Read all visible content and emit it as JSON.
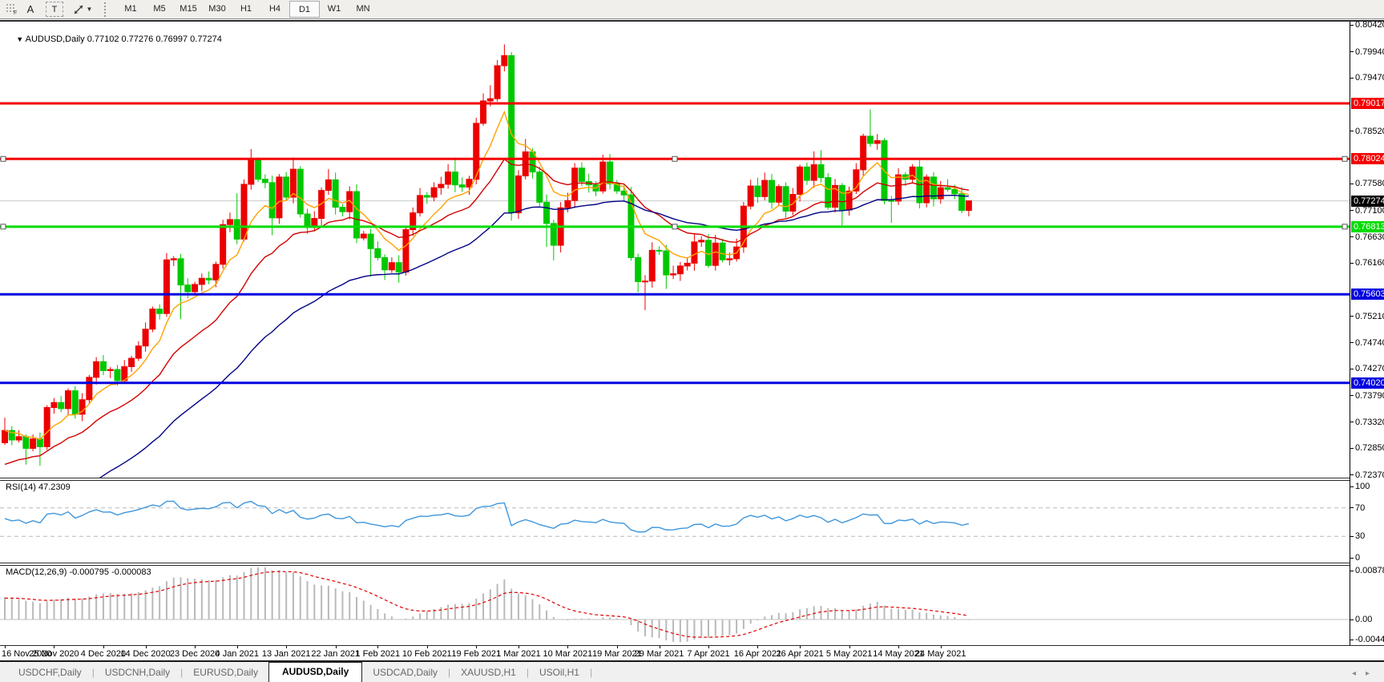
{
  "toolbar": {
    "f_label": "F",
    "a_label": "A",
    "t_label": "T",
    "timeframes": [
      "M1",
      "M5",
      "M15",
      "M30",
      "H1",
      "H4",
      "D1",
      "W1",
      "MN"
    ],
    "active_timeframe": "D1"
  },
  "chart": {
    "title": "AUDUSD,Daily",
    "ohlc_text": "0.77102 0.77276 0.76997 0.77274"
  },
  "indicators": {
    "rsi": {
      "label_text": "RSI(14) 47.2309",
      "name": "RSI",
      "period": 14,
      "current_value": 47.2309,
      "axis_ticks": [
        100,
        70,
        30,
        0
      ],
      "dashed_levels": [
        70,
        30
      ],
      "line_color": "#3E96DC"
    },
    "macd": {
      "label_text": "MACD(12,26,9) -0.000795 -0.000083",
      "name": "MACD",
      "fast": 12,
      "slow": 26,
      "signal": 9,
      "current_main": -0.000795,
      "current_signal": -8.3e-05,
      "axis_ticks": [
        "0.008782",
        "0.00",
        "-0.004451"
      ],
      "axis_tick_values": [
        0.008782,
        0.0,
        -0.004451
      ],
      "histogram_color": "#b9b9b9",
      "signal_color": "#e00000"
    }
  },
  "chart_data": {
    "type": "candlestick",
    "symbol": "AUDUSD",
    "timeframe": "Daily",
    "title": "AUDUSD,Daily",
    "price_scale": 1e-05,
    "first_open": 72950,
    "closes": [
      73170,
      73000,
      73060,
      72850,
      73020,
      72880,
      73580,
      73670,
      73560,
      73880,
      73460,
      73720,
      74120,
      74400,
      74240,
      74260,
      74060,
      74310,
      74460,
      74680,
      74980,
      75340,
      75260,
      76220,
      76240,
      75770,
      75650,
      75780,
      75890,
      75860,
      76140,
      76850,
      76940,
      76590,
      77570,
      78000,
      77660,
      77600,
      76970,
      77700,
      77340,
      77840,
      77040,
      76800,
      76960,
      77460,
      77650,
      77160,
      77080,
      77440,
      76610,
      76680,
      76420,
      76260,
      76040,
      76170,
      76000,
      76760,
      77060,
      77370,
      77340,
      77510,
      77570,
      77790,
      77560,
      77520,
      77660,
      78660,
      79060,
      79100,
      79690,
      79870,
      77060,
      77720,
      78150,
      77790,
      77250,
      76870,
      76480,
      77150,
      77280,
      77860,
      77620,
      77560,
      77450,
      77970,
      77580,
      77450,
      77380,
      76260,
      75830,
      75840,
      76390,
      76380,
      75950,
      75970,
      76110,
      76160,
      76540,
      76570,
      76120,
      76520,
      76220,
      76240,
      76450,
      77180,
      77540,
      77350,
      77640,
      77250,
      77530,
      77090,
      77390,
      77880,
      77640,
      77920,
      77690,
      77160,
      77550,
      77110,
      77450,
      77830,
      78430,
      78300,
      78350,
      77280,
      77270,
      77740,
      77660,
      77880,
      77240,
      77700,
      77310,
      77510,
      77480,
      77400,
      77102,
      77274
    ],
    "high_overrides": {
      "0": 73400,
      "33": 77410,
      "35": 78200,
      "41": 78050,
      "46": 77840,
      "63": 77930,
      "64": 78050,
      "69": 79340,
      "71": 80070,
      "74": 78380,
      "81": 77950,
      "85": 78100,
      "108": 77780,
      "115": 78160,
      "116": 78180,
      "123": 78910,
      "129": 77930,
      "134": 77660,
      "137": 77276
    },
    "low_overrides": {
      "3": 72560,
      "5": 72540,
      "10": 73380,
      "25": 75160,
      "38": 76660,
      "52": 75920,
      "54": 75860,
      "56": 75810,
      "72": 76920,
      "77": 76450,
      "78": 76210,
      "90": 75640,
      "91": 75320,
      "94": 75700,
      "119": 76800,
      "126": 76880,
      "130": 77140,
      "137": 76997
    },
    "last_bar": {
      "open": 0.77102,
      "high": 0.77276,
      "low": 0.76997,
      "close": 0.77274
    },
    "bull_color": "#ec0000",
    "bear_color": "#00c800",
    "y_axis": {
      "min": 0.7237,
      "max": 0.8042,
      "ticks": [
        "0.80420",
        "0.79940",
        "0.79470",
        "0.78520",
        "0.77580",
        "0.77100",
        "0.76630",
        "0.76160",
        "0.75210",
        "0.74740",
        "0.74270",
        "0.73790",
        "0.73320",
        "0.72850",
        "0.72370"
      ]
    },
    "x_axis_labels": [
      {
        "text": "16 Nov 2020",
        "bar": 0
      },
      {
        "text": "25 Nov 2020",
        "bar": 7
      },
      {
        "text": "4 Dec 2020",
        "bar": 14
      },
      {
        "text": "14 Dec 2020",
        "bar": 20
      },
      {
        "text": "23 Dec 2020",
        "bar": 27
      },
      {
        "text": "4 Jan 2021",
        "bar": 33
      },
      {
        "text": "13 Jan 2021",
        "bar": 40
      },
      {
        "text": "22 Jan 2021",
        "bar": 47
      },
      {
        "text": "1 Feb 2021",
        "bar": 53
      },
      {
        "text": "10 Feb 2021",
        "bar": 60
      },
      {
        "text": "19 Feb 2021",
        "bar": 67
      },
      {
        "text": "1 Mar 2021",
        "bar": 73
      },
      {
        "text": "10 Mar 2021",
        "bar": 80
      },
      {
        "text": "19 Mar 2021",
        "bar": 87
      },
      {
        "text": "29 Mar 2021",
        "bar": 93
      },
      {
        "text": "7 Apr 2021",
        "bar": 100
      },
      {
        "text": "16 Apr 2021",
        "bar": 107
      },
      {
        "text": "26 Apr 2021",
        "bar": 113
      },
      {
        "text": "5 May 2021",
        "bar": 120
      },
      {
        "text": "14 May 2021",
        "bar": 127
      },
      {
        "text": "24 May 2021",
        "bar": 133
      }
    ],
    "horizontal_lines": [
      {
        "price": 0.79017,
        "label": "0.79017",
        "color": "#f40000",
        "selected": false
      },
      {
        "price": 0.78024,
        "label": "0.78024",
        "color": "#f40000",
        "selected": true
      },
      {
        "price": 0.76813,
        "label": "0.76813",
        "color": "#00dc00",
        "selected": true
      },
      {
        "price": 0.75603,
        "label": "0.75603",
        "color": "#0000e0",
        "selected": false
      },
      {
        "price": 0.7402,
        "label": "0.74020",
        "color": "#0000e0",
        "selected": false
      }
    ],
    "current_price": {
      "value": 0.77274,
      "label": "0.77274",
      "badge_color": "#000000",
      "line_color": "#c9c9c9"
    },
    "moving_averages": [
      {
        "name": "ma-fast",
        "period": 8,
        "color": "#ffa200",
        "seed": 73170
      },
      {
        "name": "ma-mid",
        "period": 20,
        "color": "#d40000",
        "seed": 72500
      },
      {
        "name": "ma-slow",
        "period": 45,
        "color": "#000085",
        "seed": 71200
      }
    ]
  },
  "tabs": {
    "items": [
      "USDCHF,Daily",
      "USDCNH,Daily",
      "EURUSD,Daily",
      "AUDUSD,Daily",
      "USDCAD,Daily",
      "XAUUSD,H1",
      "USOil,H1"
    ],
    "active": "AUDUSD,Daily",
    "scroll_left_icon": "◂",
    "scroll_right_icon": "▸"
  }
}
